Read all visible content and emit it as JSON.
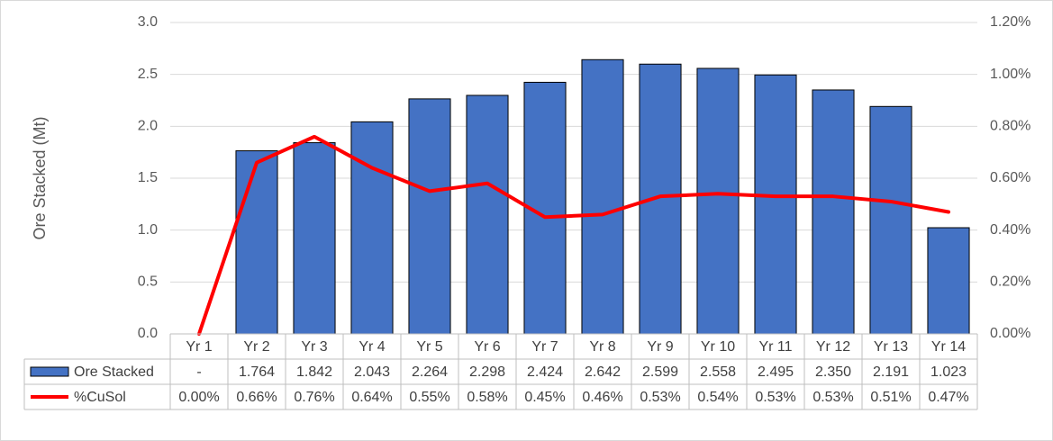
{
  "chart_data": {
    "type": "bar",
    "title": "",
    "ylabel": "Ore Stacked (Mt)",
    "y2label": "",
    "ylim": [
      0,
      3.0
    ],
    "y_ticks": [
      "0.0",
      "0.5",
      "1.0",
      "1.5",
      "2.0",
      "2.5",
      "3.0"
    ],
    "y2lim": [
      0,
      0.012
    ],
    "y2_ticks": [
      "0.00%",
      "0.20%",
      "0.40%",
      "0.60%",
      "0.80%",
      "1.00%",
      "1.20%"
    ],
    "grid": true,
    "legend": "data-table",
    "categories": [
      "Yr 1",
      "Yr 2",
      "Yr 3",
      "Yr 4",
      "Yr 5",
      "Yr 6",
      "Yr 7",
      "Yr 8",
      "Yr 9",
      "Yr 10",
      "Yr 11",
      "Yr 12",
      "Yr 13",
      "Yr 14"
    ],
    "series": [
      {
        "name": "Ore Stacked",
        "type": "bar",
        "axis": "left",
        "color": "#4472c4",
        "values": [
          0,
          1.764,
          1.842,
          2.043,
          2.264,
          2.298,
          2.424,
          2.642,
          2.599,
          2.558,
          2.495,
          2.35,
          2.191,
          1.023
        ],
        "labels": [
          "-",
          "1.764",
          "1.842",
          "2.043",
          "2.264",
          "2.298",
          "2.424",
          "2.642",
          "2.599",
          "2.558",
          "2.495",
          "2.350",
          "2.191",
          "1.023"
        ]
      },
      {
        "name": "%CuSol",
        "type": "line",
        "axis": "right",
        "color": "#ff0000",
        "values": [
          0.0,
          0.0066,
          0.0076,
          0.0064,
          0.0055,
          0.0058,
          0.0045,
          0.0046,
          0.0053,
          0.0054,
          0.0053,
          0.0053,
          0.0051,
          0.0047
        ],
        "labels": [
          "0.00%",
          "0.66%",
          "0.76%",
          "0.64%",
          "0.55%",
          "0.58%",
          "0.45%",
          "0.46%",
          "0.53%",
          "0.54%",
          "0.53%",
          "0.53%",
          "0.51%",
          "0.47%"
        ]
      }
    ]
  }
}
